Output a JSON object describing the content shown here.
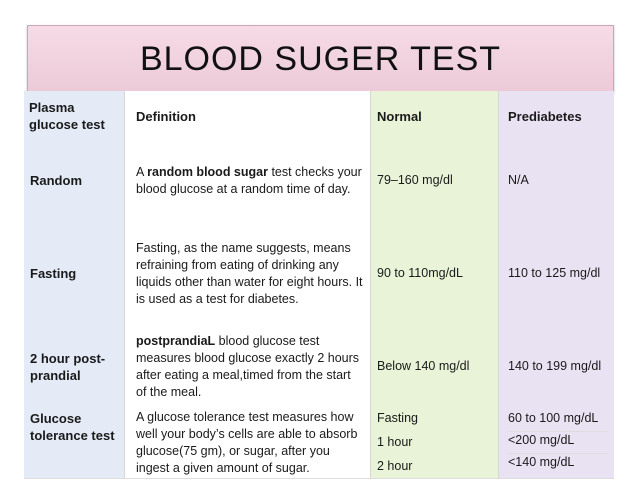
{
  "title": "BLOOD SUGER TEST",
  "headers": {
    "test": "Plasma glucose test",
    "definition": "Definition",
    "normal": "Normal",
    "prediabetes": "Prediabetes"
  },
  "rows": [
    {
      "test": "Random",
      "def_pre": "A ",
      "def_bold": "random blood sugar",
      "def_post": " test checks your blood glucose at a random time of day.",
      "normal": "79–160 mg/dl",
      "prediabetes": "N/A"
    },
    {
      "test": "Fasting",
      "def_pre": "Fasting, as the name suggests, means refraining from eating of drinking any liquids other than water for eight hours. It is used as a test for diabetes.",
      "normal": "90 to 110mg/dL",
      "prediabetes": "110 to 125 mg/dl"
    },
    {
      "test": "2 hour post-prandial",
      "def_bold": "postprandiaL",
      "def_post": " blood glucose test measures blood glucose exactly 2 hours after eating a meal,timed from the start of the meal.",
      "normal": "Below 140 mg/dl",
      "prediabetes": "140 to 199 mg/dl"
    },
    {
      "test": "Glucose tolerance test",
      "def_pre": "A glucose tolerance test measures how well your body’s cells are able to absorb glucose(75 gm), or sugar, after you ingest a given amount of sugar.",
      "normal_list": [
        "Fasting",
        "1 hour",
        "2 hour"
      ],
      "prediabetes_list": [
        "60 to 100 mg/dL",
        "<200 mg/dL",
        "<140 mg/dL"
      ]
    }
  ]
}
